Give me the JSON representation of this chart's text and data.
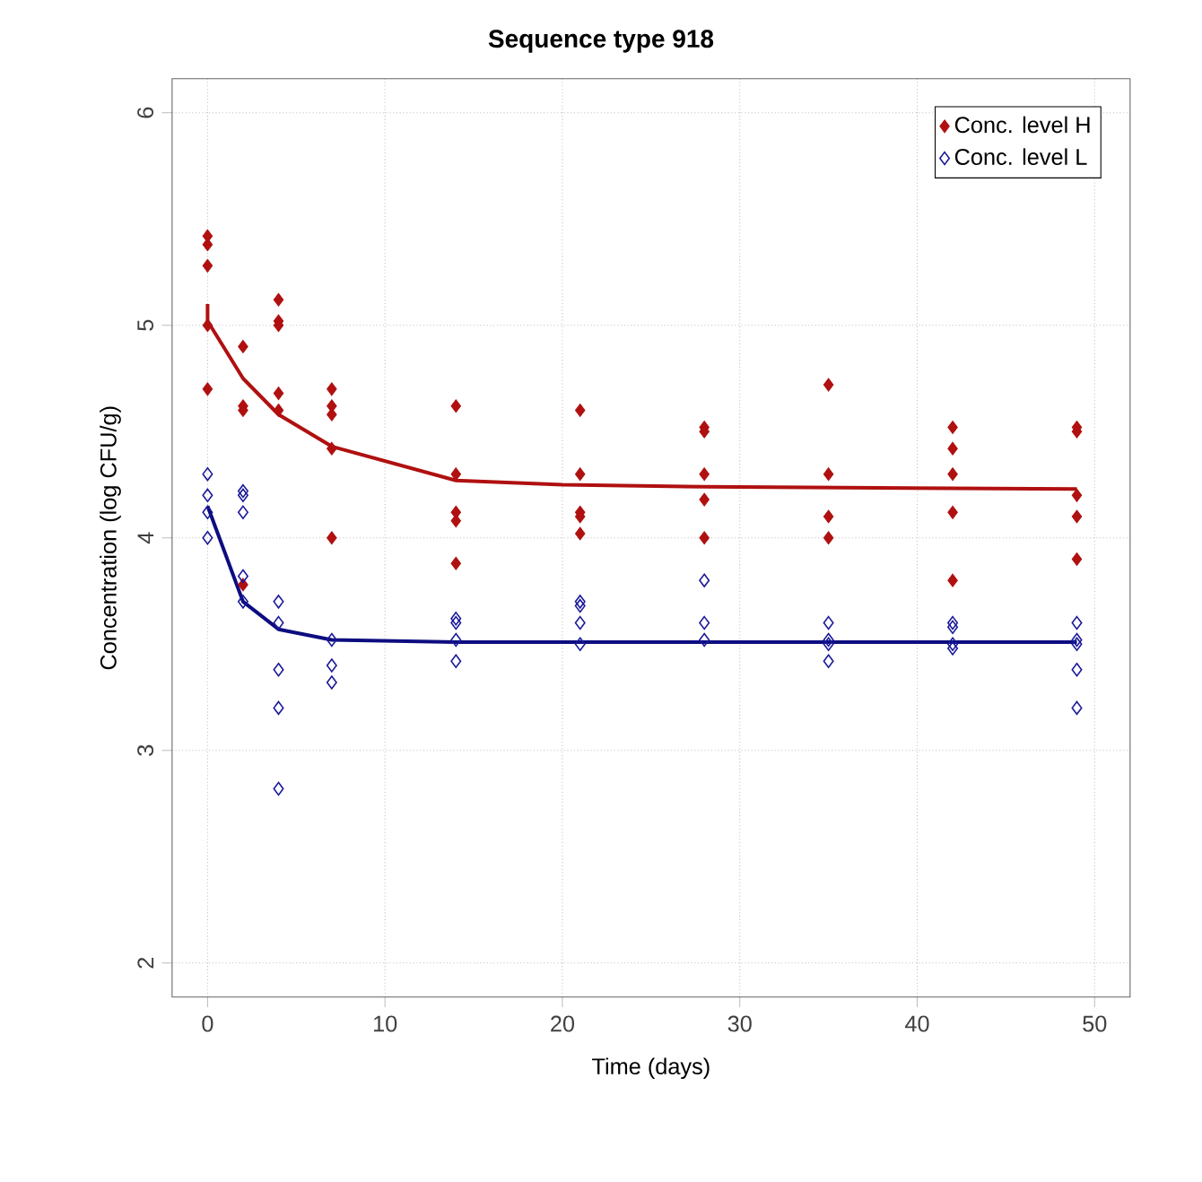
{
  "chart_data": {
    "type": "scatter",
    "title": "Sequence type 918",
    "xlabel": "Time (days)",
    "ylabel": "Concentration (log CFU/g)",
    "xlim": [
      -2,
      52
    ],
    "ylim": [
      1.84,
      6.16
    ],
    "xticks": [
      0,
      10,
      20,
      30,
      40,
      50
    ],
    "yticks": [
      2,
      3,
      4,
      5,
      6
    ],
    "grid": true,
    "legend": "top right",
    "series": [
      {
        "name": "Conc. level H",
        "color": "#b01010",
        "marker": "diamond",
        "x": [
          0,
          0,
          0,
          0,
          0,
          2,
          2,
          2,
          2,
          4,
          4,
          4,
          4,
          4,
          7,
          7,
          7,
          7,
          7,
          14,
          14,
          14,
          14,
          14,
          21,
          21,
          21,
          21,
          21,
          28,
          28,
          28,
          28,
          28,
          35,
          35,
          35,
          35,
          42,
          42,
          42,
          42,
          42,
          49,
          49,
          49,
          49,
          49
        ],
        "values": [
          5.42,
          5.38,
          5.28,
          5.0,
          4.7,
          4.9,
          4.62,
          4.6,
          3.78,
          5.12,
          5.02,
          5.0,
          4.68,
          4.6,
          4.7,
          4.62,
          4.58,
          4.42,
          4.0,
          4.62,
          4.3,
          4.12,
          4.08,
          3.88,
          4.6,
          4.3,
          4.12,
          4.1,
          4.02,
          4.52,
          4.5,
          4.3,
          4.18,
          4.0,
          4.72,
          4.3,
          4.1,
          4.0,
          4.52,
          4.42,
          4.3,
          4.12,
          3.8,
          4.52,
          4.5,
          4.2,
          4.1,
          3.9
        ]
      },
      {
        "name": "Conc. level L",
        "color": "#1a1a9a",
        "marker": "diamond",
        "x": [
          0,
          0,
          0,
          0,
          2,
          2,
          2,
          2,
          2,
          4,
          4,
          4,
          4,
          4,
          7,
          7,
          7,
          14,
          14,
          14,
          14,
          21,
          21,
          21,
          21,
          28,
          28,
          28,
          35,
          35,
          35,
          35,
          42,
          42,
          42,
          42,
          49,
          49,
          49,
          49,
          49
        ],
        "values": [
          4.3,
          4.2,
          4.12,
          4.0,
          4.22,
          4.2,
          4.12,
          3.82,
          3.7,
          3.7,
          3.6,
          3.38,
          3.2,
          2.82,
          3.52,
          3.4,
          3.32,
          3.62,
          3.6,
          3.52,
          3.42,
          3.7,
          3.68,
          3.6,
          3.5,
          3.8,
          3.6,
          3.52,
          3.6,
          3.52,
          3.5,
          3.42,
          3.6,
          3.58,
          3.5,
          3.48,
          3.6,
          3.52,
          3.5,
          3.38,
          3.2
        ]
      },
      {
        "color": "#b01010",
        "type": "line",
        "line_style": "solid",
        "x": [
          0,
          0,
          2,
          4,
          7,
          14,
          20,
          28,
          49
        ],
        "values": [
          5.1,
          5.02,
          4.75,
          4.58,
          4.43,
          4.27,
          4.25,
          4.24,
          4.23
        ]
      },
      {
        "color": "#0d0d80",
        "type": "line",
        "line_style": "solid",
        "x": [
          0,
          2,
          4,
          7,
          14,
          49
        ],
        "values": [
          4.15,
          3.7,
          3.57,
          3.52,
          3.51,
          3.51
        ]
      }
    ]
  }
}
